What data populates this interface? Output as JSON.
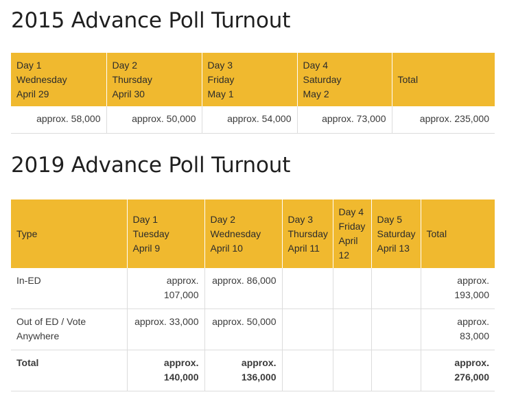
{
  "t2015": {
    "title": "2015 Advance Poll Turnout",
    "headers": [
      {
        "l1": "Day 1",
        "l2": "Wednesday",
        "l3": "April 29"
      },
      {
        "l1": "Day 2",
        "l2": "Thursday",
        "l3": "April 30"
      },
      {
        "l1": "Day 3",
        "l2": "Friday",
        "l3": "May 1"
      },
      {
        "l1": "Day 4",
        "l2": "Saturday",
        "l3": "May 2"
      },
      {
        "l1": "Total"
      }
    ],
    "values": [
      "approx. 58,000",
      "approx. 50,000",
      "approx. 54,000",
      "approx. 73,000",
      "approx. 235,000"
    ]
  },
  "t2019": {
    "title": "2019 Advance Poll Turnout",
    "headers": [
      {
        "l1": "Type"
      },
      {
        "l1": "Day 1",
        "l2": "Tuesday",
        "l3": "April 9"
      },
      {
        "l1": "Day 2",
        "l2": "Wednesday",
        "l3": "April 10"
      },
      {
        "l1": "Day 3",
        "l2": "Thursday",
        "l3": "April 11"
      },
      {
        "l1": "Day 4",
        "l2": "Friday",
        "l3": "April",
        "l4": "12"
      },
      {
        "l1": "Day 5",
        "l2": "Saturday",
        "l3": "April 13"
      },
      {
        "l1": "Total"
      }
    ],
    "rows": [
      {
        "type": [
          "In-ED"
        ],
        "cells": [
          [
            "approx.",
            "107,000"
          ],
          [
            "approx. 86,000"
          ],
          [],
          [],
          [],
          [
            "approx.",
            "193,000"
          ]
        ]
      },
      {
        "type": [
          "Out of ED / Vote",
          "Anywhere"
        ],
        "cells": [
          [
            "approx. 33,000"
          ],
          [
            "approx. 50,000"
          ],
          [],
          [],
          [],
          [
            "approx.",
            "83,000"
          ]
        ]
      },
      {
        "type": [
          "Total"
        ],
        "cells": [
          [
            "approx.",
            "140,000"
          ],
          [
            "approx.",
            "136,000"
          ],
          [],
          [],
          [],
          [
            "approx.",
            "276,000"
          ]
        ]
      }
    ]
  }
}
